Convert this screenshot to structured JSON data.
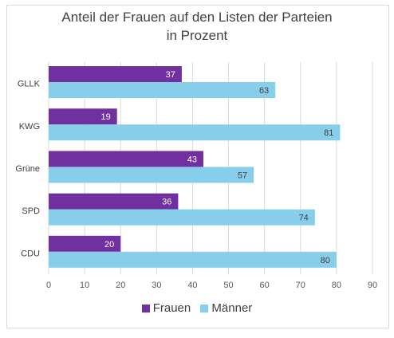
{
  "chart_data": {
    "type": "bar",
    "orientation": "horizontal",
    "title": "Anteil der Frauen auf den Listen der Parteien in Prozent",
    "title_lines": [
      "Anteil der Frauen auf den Listen der Parteien",
      "in Prozent"
    ],
    "categories": [
      "GLLK",
      "KWG",
      "Grüne",
      "SPD",
      "CDU"
    ],
    "series": [
      {
        "name": "Frauen",
        "values": [
          37,
          19,
          43,
          36,
          20
        ],
        "color": "#7030a0",
        "label_color": "#ffffff"
      },
      {
        "name": "Männer",
        "values": [
          63,
          81,
          57,
          74,
          80
        ],
        "color": "#87ceeb",
        "label_color": "#404040"
      }
    ],
    "xlim": [
      0,
      90
    ],
    "xticks": [
      0,
      10,
      20,
      30,
      40,
      50,
      60,
      70,
      80,
      90
    ],
    "grid": true,
    "legend_position": "bottom"
  }
}
